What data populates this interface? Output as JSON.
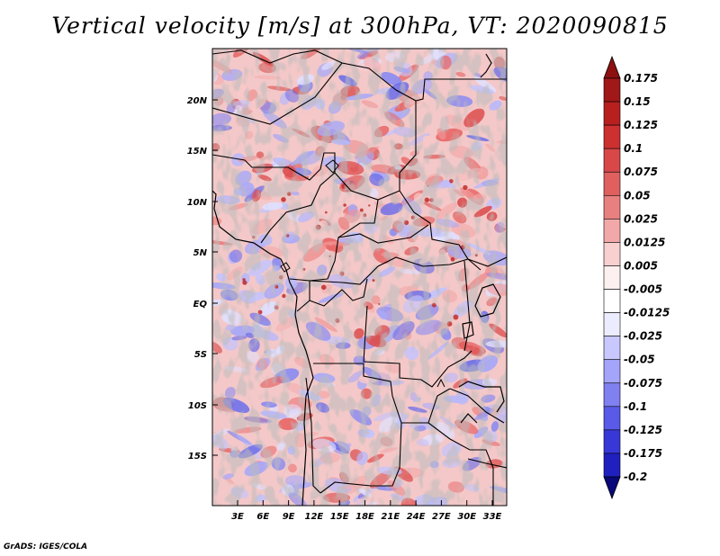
{
  "title": "Vertical velocity [m/s] at 300hPa, VT: 2020090815",
  "credit": "GrADS: IGES/COLA",
  "map": {
    "lat_labels": [
      "20N",
      "15N",
      "10N",
      "5N",
      "EQ",
      "5S",
      "10S",
      "15S"
    ],
    "lon_labels": [
      "3E",
      "6E",
      "9E",
      "12E",
      "15E",
      "18E",
      "21E",
      "24E",
      "27E",
      "30E",
      "33E"
    ],
    "pos_color": "#e05050",
    "neg_color": "#5a5af0"
  },
  "colorbar": {
    "labels": [
      "0.175",
      "0.15",
      "0.125",
      "0.1",
      "0.075",
      "0.05",
      "0.025",
      "0.0125",
      "0.005",
      "-0.005",
      "-0.0125",
      "-0.025",
      "-0.05",
      "-0.075",
      "-0.1",
      "-0.125",
      "-0.175",
      "-0.2"
    ],
    "colors": [
      "#a01818",
      "#b82020",
      "#cc3030",
      "#d84848",
      "#e06060",
      "#e88080",
      "#f2a8a8",
      "#f8d0d0",
      "#fdf0f0",
      "#ffffff",
      "#ececff",
      "#c8c8ff",
      "#a4a4fa",
      "#8080f0",
      "#5a5ae8",
      "#3838d8",
      "#2020c0",
      "#0c0ca0"
    ],
    "top_color": "#8c1010",
    "bottom_color": "#08087a"
  }
}
